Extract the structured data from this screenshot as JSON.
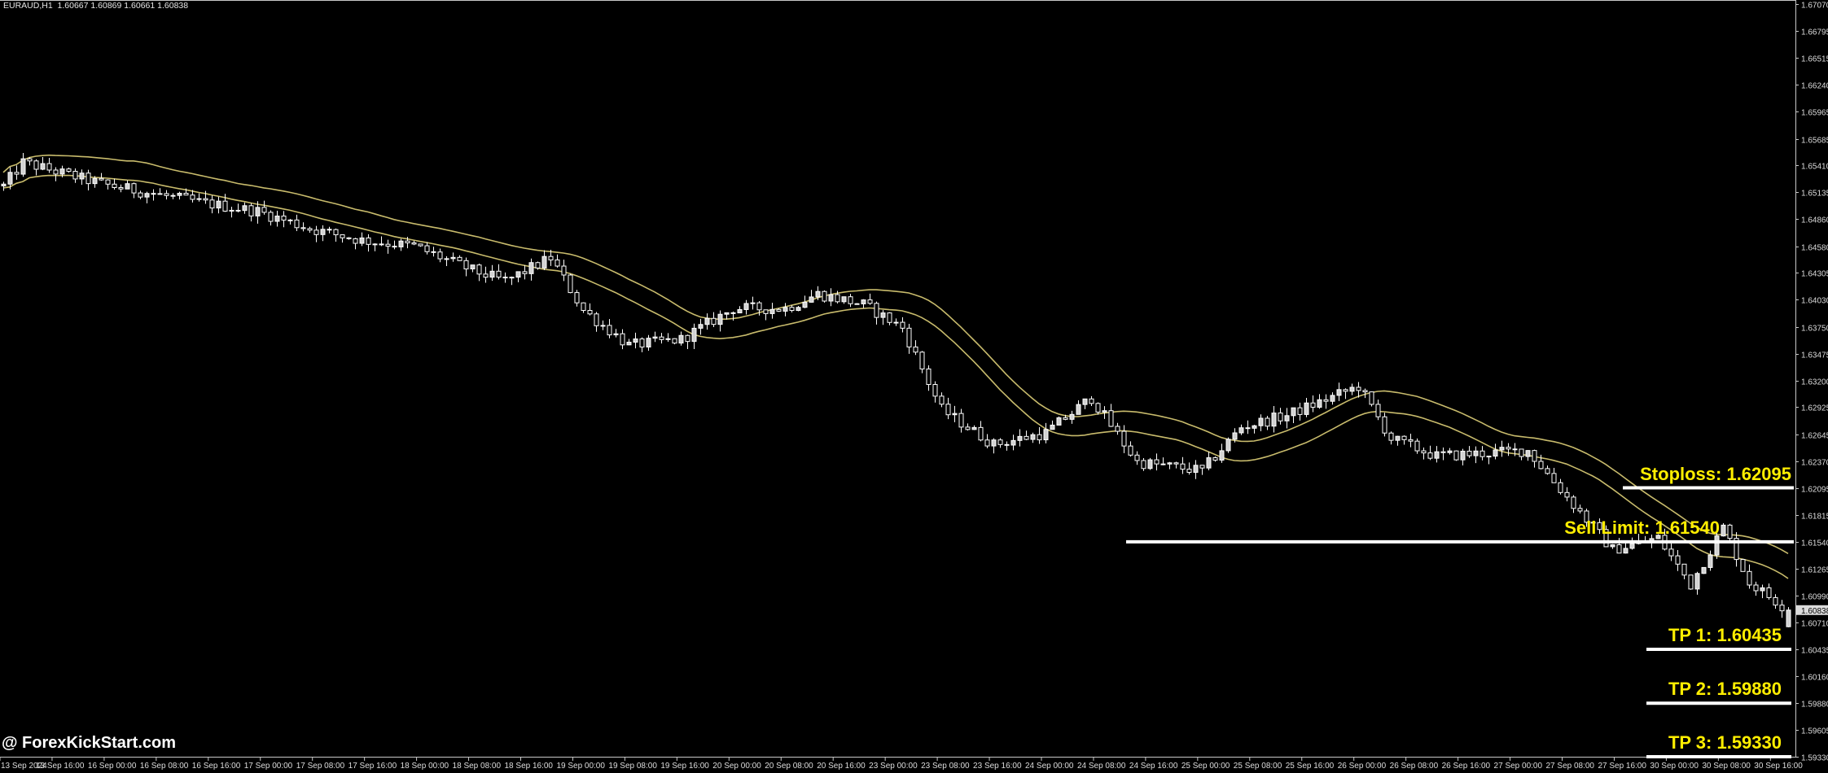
{
  "header": {
    "symbol": "EURAUD,H1",
    "ohlc": "1.60667 1.60869 1.60661 1.60838"
  },
  "watermark": "@ ForexKickStart.com",
  "colors": {
    "background": "#000000",
    "candle": "#ffffff",
    "bull_fill": "#d2d2d2",
    "ma": "#c8bb6c",
    "annotation_text": "#ffee00",
    "level_line": "#ffffff"
  },
  "chart_data": {
    "type": "candlestick",
    "symbol": "EURAUD",
    "timeframe": "H1",
    "current_price": 1.60838,
    "last_bar": {
      "open": 1.60667,
      "high": 1.60869,
      "low": 1.60661,
      "close": 1.60838
    },
    "ylim": [
      1.5933,
      1.6707
    ],
    "y_ticks": [
      "1.67070",
      "1.66795",
      "1.66515",
      "1.66240",
      "1.65965",
      "1.65685",
      "1.65410",
      "1.65135",
      "1.64860",
      "1.64580",
      "1.64305",
      "1.64030",
      "1.63750",
      "1.63475",
      "1.63200",
      "1.62925",
      "1.62645",
      "1.62370",
      "1.62095",
      "1.61815",
      "1.61540",
      "1.61265",
      "1.60990",
      "1.60710",
      "1.60435",
      "1.60160",
      "1.59880",
      "1.59605",
      "1.59330"
    ],
    "x_ticks": [
      "13 Sep 2024",
      "13 Sep 16:00",
      "16 Sep 00:00",
      "16 Sep 08:00",
      "16 Sep 16:00",
      "17 Sep 00:00",
      "17 Sep 08:00",
      "17 Sep 16:00",
      "18 Sep 00:00",
      "18 Sep 08:00",
      "18 Sep 16:00",
      "19 Sep 00:00",
      "19 Sep 08:00",
      "19 Sep 16:00",
      "20 Sep 00:00",
      "20 Sep 08:00",
      "20 Sep 16:00",
      "23 Sep 00:00",
      "23 Sep 08:00",
      "23 Sep 16:00",
      "24 Sep 00:00",
      "24 Sep 08:00",
      "24 Sep 16:00",
      "25 Sep 00:00",
      "25 Sep 08:00",
      "25 Sep 16:00",
      "26 Sep 00:00",
      "26 Sep 08:00",
      "26 Sep 16:00",
      "27 Sep 00:00",
      "27 Sep 08:00",
      "27 Sep 16:00",
      "30 Sep 00:00",
      "30 Sep 08:00",
      "30 Sep 16:00"
    ],
    "bars_per_tick": 8,
    "bar_count": 275,
    "close_path": [
      [
        0,
        1.652
      ],
      [
        3,
        1.6544
      ],
      [
        15,
        1.6522
      ],
      [
        23,
        1.6512
      ],
      [
        31,
        1.6502
      ],
      [
        39,
        1.6494
      ],
      [
        47,
        1.6476
      ],
      [
        55,
        1.6464
      ],
      [
        63,
        1.6458
      ],
      [
        72,
        1.6433
      ],
      [
        77,
        1.6422
      ],
      [
        84,
        1.6446
      ],
      [
        89,
        1.6392
      ],
      [
        96,
        1.6356
      ],
      [
        104,
        1.6362
      ],
      [
        112,
        1.6394
      ],
      [
        120,
        1.6394
      ],
      [
        125,
        1.6409
      ],
      [
        132,
        1.6398
      ],
      [
        138,
        1.6374
      ],
      [
        144,
        1.629
      ],
      [
        152,
        1.6254
      ],
      [
        160,
        1.6266
      ],
      [
        167,
        1.6302
      ],
      [
        174,
        1.6236
      ],
      [
        184,
        1.6227
      ],
      [
        190,
        1.6272
      ],
      [
        197,
        1.6284
      ],
      [
        208,
        1.6314
      ],
      [
        213,
        1.626
      ],
      [
        220,
        1.6242
      ],
      [
        234,
        1.6248
      ],
      [
        240,
        1.62
      ],
      [
        247,
        1.6146
      ],
      [
        254,
        1.6158
      ],
      [
        259,
        1.611
      ],
      [
        264,
        1.6169
      ],
      [
        268,
        1.6112
      ],
      [
        274,
        1.60838
      ]
    ],
    "levels": [
      {
        "label": "Stoploss: 1.62095",
        "price": 1.62095
      },
      {
        "label": "Sell Limit: 1.61540",
        "price": 1.6154
      },
      {
        "label": "TP 1: 1.60435",
        "price": 1.60435
      },
      {
        "label": "TP 2: 1.59880",
        "price": 1.5988
      },
      {
        "label": "TP 3: 1.59330",
        "price": 1.5933
      }
    ],
    "moving_averages": 2
  }
}
